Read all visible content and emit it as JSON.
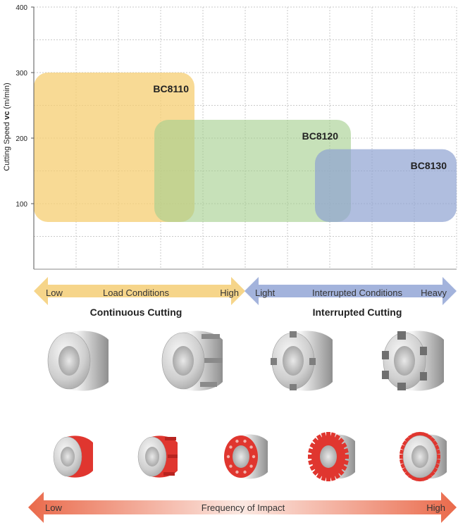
{
  "chart_data": {
    "type": "range",
    "title": "",
    "ylabel": "Cutting Speed vc (m/min)",
    "ylabel_parts": [
      "Cutting Speed ",
      "vc",
      " (m/min)"
    ],
    "ylim": [
      0,
      400
    ],
    "yticks": [
      100,
      200,
      300,
      400
    ],
    "series": [
      {
        "name": "BC8110",
        "color": "#f6cd72",
        "opacity": 0.75,
        "x_start": 0.0,
        "x_end": 0.38,
        "y_min": 72,
        "y_max": 300
      },
      {
        "name": "BC8120",
        "color": "#a4cf8e",
        "opacity": 0.62,
        "x_start": 0.285,
        "x_end": 0.75,
        "y_min": 72,
        "y_max": 228
      },
      {
        "name": "BC8130",
        "color": "#8fa2d2",
        "opacity": 0.7,
        "x_start": 0.665,
        "x_end": 1.0,
        "y_min": 72,
        "y_max": 183
      }
    ]
  },
  "arrows": {
    "load": {
      "low": "Low",
      "title": "Load Conditions",
      "high": "High",
      "caption": "Continuous Cutting",
      "color": "#f6d58a"
    },
    "interrupted": {
      "low": "Light",
      "title": "Interrupted Conditions",
      "high": "Heavy",
      "caption": "Interrupted Cutting",
      "color": "#a3b3dc"
    },
    "frequency": {
      "low": "Low",
      "title": "Frequency of Impact",
      "high": "High",
      "color_start": "#ea6a4b",
      "color_end": "#ea6a4b"
    }
  },
  "workpieces": {
    "top_row": [
      {
        "kind": "plain-ring",
        "slots": 0
      },
      {
        "kind": "slotted-ring",
        "slots": 3
      },
      {
        "kind": "notched-ring",
        "slots": 4
      },
      {
        "kind": "heavy-interrupted-ring",
        "slots": 6
      }
    ],
    "bottom_row": [
      {
        "kind": "plain-ring-highlight",
        "holes": 0
      },
      {
        "kind": "grooved-ring-highlight",
        "holes": 0
      },
      {
        "kind": "drilled-ring-highlight",
        "holes": 10
      },
      {
        "kind": "gear-highlight",
        "teeth": 24
      },
      {
        "kind": "fine-gear-highlight",
        "teeth": 30
      }
    ],
    "highlight_color": "#e0362f"
  }
}
